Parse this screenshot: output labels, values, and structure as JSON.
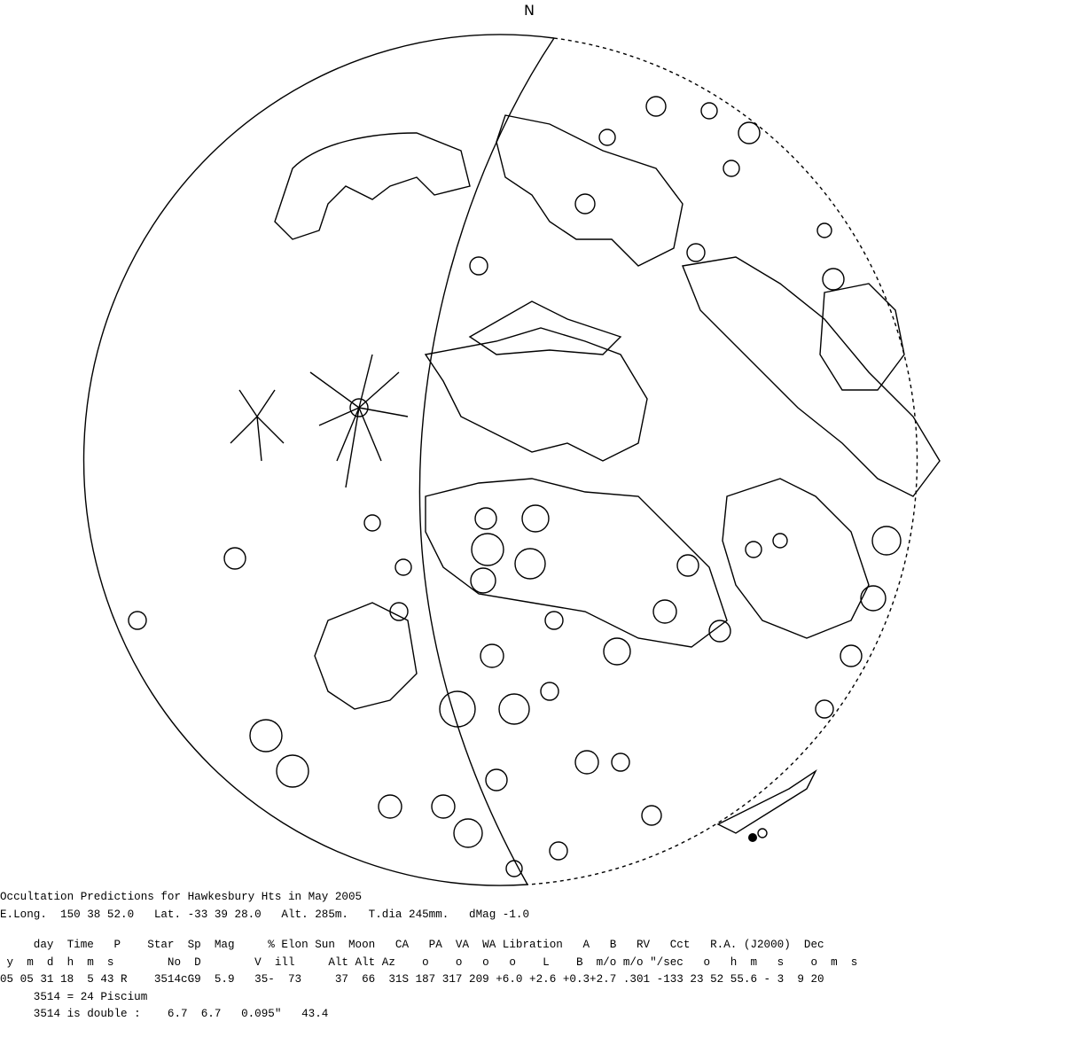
{
  "north_label": "N",
  "report": {
    "title": "Occultation Predictions for Hawkesbury Hts in May 2005",
    "site": "E.Long.  150 38 52.0   Lat. -33 39 28.0   Alt. 285m.   T.dia 245mm.   dMag -1.0",
    "header1": "     day  Time   P    Star  Sp  Mag     % Elon Sun  Moon   CA   PA  VA  WA Libration   A   B   RV   Cct   R.A. (J2000)  Dec",
    "header2": " y  m  d  h  m  s        No  D        V  ill     Alt Alt Az    o    o   o   o    L    B  m/o m/o \"/sec   o   h  m   s    o  m  s",
    "row": "05 05 31 18  5 43 R    3514cG9  5.9   35-  73     37  66  31S 187 317 209 +6.0 +2.6 +0.3+2.7 .301 -133 23 52 55.6 - 3  9 20",
    "star_name": "     3514 = 24 Piscium",
    "double_info": "     3514 is double :    6.7  6.7   0.095\"   43.4"
  },
  "colors": {
    "ink": "#000000",
    "background": "#ffffff"
  }
}
